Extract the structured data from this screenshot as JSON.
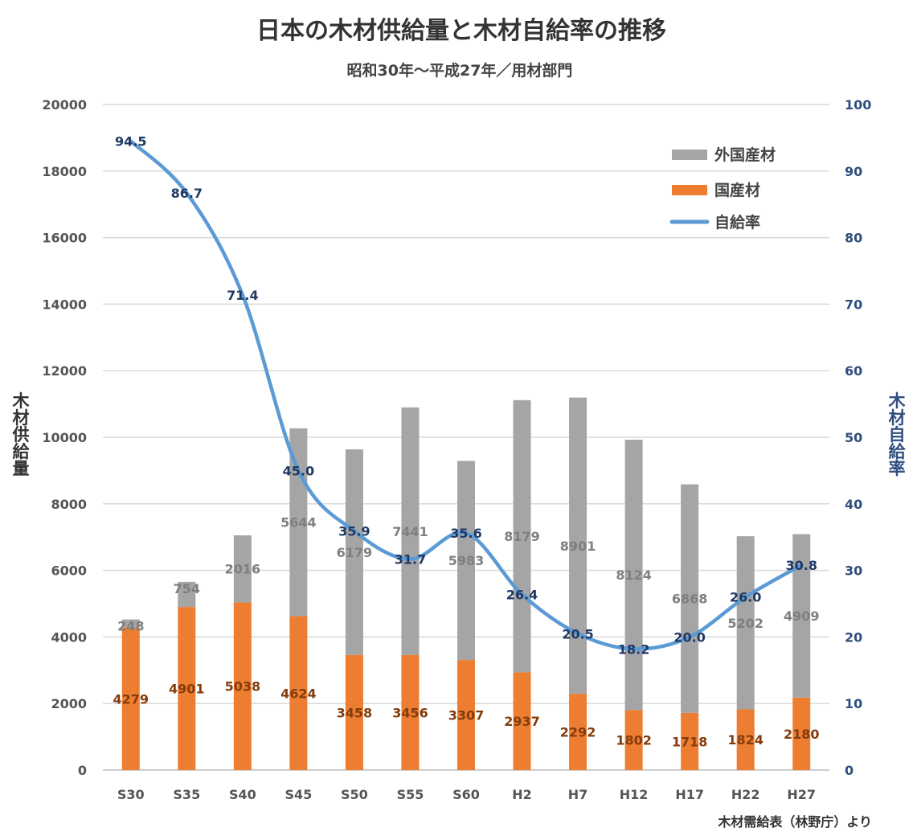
{
  "chart_data": {
    "type": "bar",
    "title": "日本の木材供給量と木材自給率の推移",
    "subtitle": "昭和30年～平成27年／用材部門",
    "categories": [
      "S30",
      "S35",
      "S40",
      "S45",
      "S50",
      "S55",
      "S60",
      "H2",
      "H7",
      "H12",
      "H17",
      "H22",
      "H27"
    ],
    "series": [
      {
        "name": "国産材",
        "kind": "stacked-bar",
        "axis": "left",
        "color": "#ED7D31",
        "label_color": "#843C0C",
        "values": [
          4279,
          4901,
          5038,
          4624,
          3458,
          3456,
          3307,
          2937,
          2292,
          1802,
          1718,
          1824,
          2180
        ]
      },
      {
        "name": "外国産材",
        "kind": "stacked-bar",
        "axis": "left",
        "color": "#A5A5A5",
        "label_color": "#7F7F7F",
        "values": [
          248,
          754,
          2016,
          5644,
          6179,
          7441,
          5983,
          8179,
          8901,
          8124,
          6868,
          5202,
          4909
        ]
      },
      {
        "name": "自給率",
        "kind": "line",
        "axis": "right",
        "color": "#5B9BD5",
        "label_color": "#1F3864",
        "values": [
          94.5,
          86.7,
          71.4,
          45.0,
          35.9,
          31.7,
          35.6,
          26.4,
          20.5,
          18.2,
          20.0,
          26.0,
          30.8
        ]
      }
    ],
    "ylabel": "木材供給量",
    "y2label": "木材自給率",
    "ylim": [
      0,
      20000
    ],
    "y2lim": [
      0,
      100
    ],
    "yticks": [
      0,
      2000,
      4000,
      6000,
      8000,
      10000,
      12000,
      14000,
      16000,
      18000,
      20000
    ],
    "y2ticks": [
      0,
      10,
      20,
      30,
      40,
      50,
      60,
      70,
      80,
      90,
      100
    ],
    "grid": true,
    "legend_position": "top-right",
    "legend": [
      "外国産材",
      "国産材",
      "自給率"
    ],
    "source": "木材需給表（林野庁）より"
  }
}
